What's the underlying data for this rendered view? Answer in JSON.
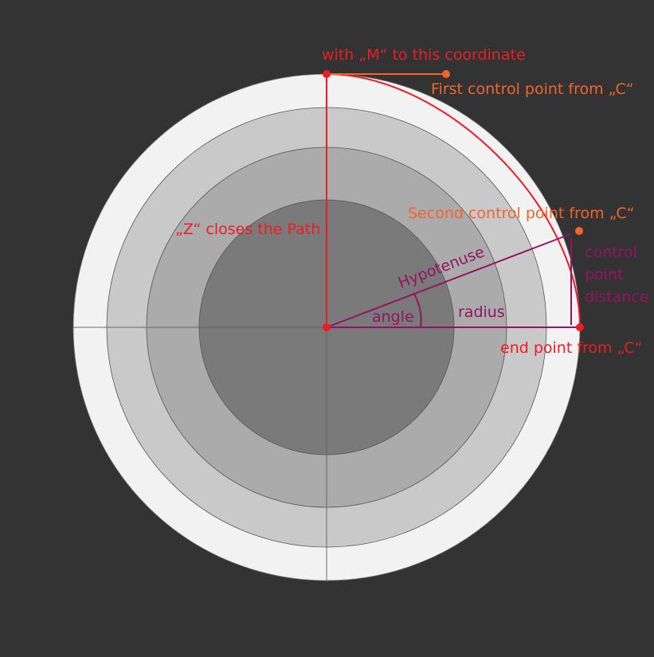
{
  "labels": {
    "move_to": "with „M“ to this coordinate",
    "first_control": "First control point from „C“",
    "second_control": "Second control point from „C“",
    "close_path": "„Z“ closes the Path",
    "end_point": "end point from „C“",
    "hypotenuse": "Hypotenuse",
    "angle": "angle",
    "radius": "radius",
    "control_distance_line1": "control",
    "control_distance_line2": "point",
    "control_distance_line3": "distance"
  },
  "colors": {
    "background": "#333333",
    "ring_outer": "#f2f2f2",
    "ring_2": "#c9c9c9",
    "ring_3": "#ababab",
    "ring_inner": "#7a7a7a",
    "path_red": "#ee1c23",
    "control_orange": "#f26430",
    "geometry_purple": "#95145f",
    "axis_line": "#666666"
  }
}
